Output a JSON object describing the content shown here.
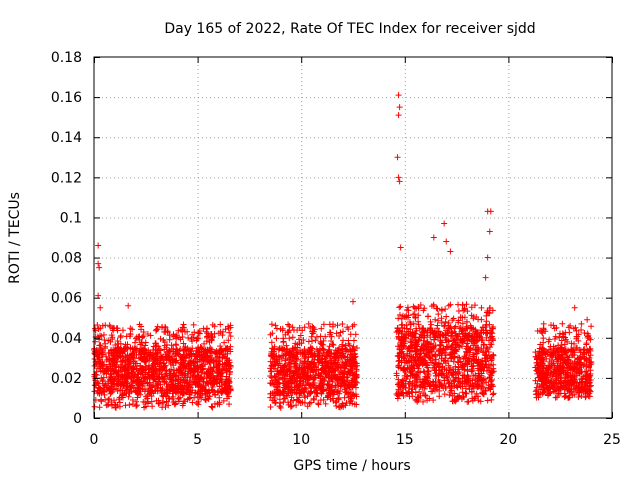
{
  "chart_data": {
    "type": "scatter",
    "title": "Day 165 of 2022, Rate Of TEC Index for receiver sjdd",
    "xlabel": "GPS time / hours",
    "ylabel": "ROTI / TECUs",
    "xlim": [
      0,
      25
    ],
    "ylim": [
      0,
      0.18
    ],
    "xticks": [
      0,
      5,
      10,
      15,
      20,
      25
    ],
    "xtick_labels": [
      "0",
      "5",
      "10",
      "15",
      "20",
      "25"
    ],
    "yticks": [
      0,
      0.02,
      0.04,
      0.06,
      0.08,
      0.1,
      0.12,
      0.14,
      0.16,
      0.18
    ],
    "ytick_labels": [
      "0",
      "0.02",
      "0.04",
      "0.06",
      "0.08",
      "0.1",
      "0.12",
      "0.14",
      "0.16",
      "0.18"
    ],
    "grid": true,
    "marker": "+",
    "color": "#ff0000",
    "segments": [
      {
        "x_start": 0.0,
        "x_end": 6.6,
        "y_low": 0.005,
        "y_typical_low": 0.012,
        "y_typical_high": 0.035
      },
      {
        "x_start": 8.5,
        "x_end": 12.7,
        "y_low": 0.005,
        "y_typical_low": 0.012,
        "y_typical_high": 0.035
      },
      {
        "x_start": 14.6,
        "x_end": 19.3,
        "y_low": 0.008,
        "y_typical_low": 0.015,
        "y_typical_high": 0.045
      },
      {
        "x_start": 21.3,
        "x_end": 24.0,
        "y_low": 0.01,
        "y_typical_low": 0.013,
        "y_typical_high": 0.035
      }
    ],
    "notable_points": [
      {
        "x": 0.2,
        "y": 0.086
      },
      {
        "x": 0.2,
        "y": 0.077
      },
      {
        "x": 0.25,
        "y": 0.075
      },
      {
        "x": 0.2,
        "y": 0.061
      },
      {
        "x": 0.3,
        "y": 0.055
      },
      {
        "x": 1.65,
        "y": 0.056
      },
      {
        "x": 12.5,
        "y": 0.058
      },
      {
        "x": 14.7,
        "y": 0.161
      },
      {
        "x": 14.75,
        "y": 0.155
      },
      {
        "x": 14.7,
        "y": 0.151
      },
      {
        "x": 14.65,
        "y": 0.13
      },
      {
        "x": 14.7,
        "y": 0.12
      },
      {
        "x": 14.75,
        "y": 0.118
      },
      {
        "x": 14.8,
        "y": 0.085
      },
      {
        "x": 16.4,
        "y": 0.09
      },
      {
        "x": 16.9,
        "y": 0.097
      },
      {
        "x": 17.0,
        "y": 0.088
      },
      {
        "x": 17.2,
        "y": 0.083
      },
      {
        "x": 19.0,
        "y": 0.103
      },
      {
        "x": 19.15,
        "y": 0.103
      },
      {
        "x": 19.1,
        "y": 0.093
      },
      {
        "x": 19.0,
        "y": 0.08
      },
      {
        "x": 18.9,
        "y": 0.07
      },
      {
        "x": 23.2,
        "y": 0.055
      },
      {
        "x": 23.8,
        "y": 0.049
      }
    ]
  }
}
